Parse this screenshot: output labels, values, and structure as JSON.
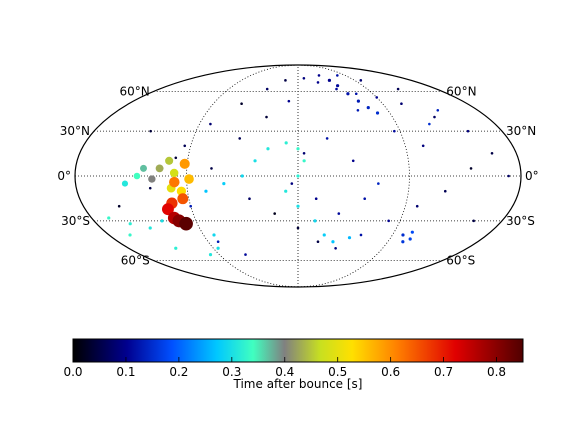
{
  "chart_data": {
    "type": "scatter",
    "projection": "mollweide",
    "title": "",
    "xlabel": "",
    "ylabel": "",
    "lat_tick_labels": [
      {
        "lat": 60,
        "label": "60°N"
      },
      {
        "lat": 30,
        "label": "30°N"
      },
      {
        "lat": 0,
        "label": "0°"
      },
      {
        "lat": -30,
        "label": "30°S"
      },
      {
        "lat": -60,
        "label": "60°S"
      }
    ],
    "grid": true,
    "colorbar": {
      "label": "Time after bounce [s]",
      "range": [
        0.0,
        0.85
      ],
      "ticks": [
        "0.0",
        "0.1",
        "0.2",
        "0.3",
        "0.4",
        "0.5",
        "0.6",
        "0.7",
        "0.8"
      ],
      "colormap": "jet-with-grey"
    },
    "series": [
      {
        "kind": "scattered-early-points",
        "points": [
          {
            "lon": -110,
            "lat": 5,
            "t": 0.02
          },
          {
            "lon": -100,
            "lat": 12,
            "t": 0.04
          },
          {
            "lon": -95,
            "lat": 20,
            "t": 0.06
          },
          {
            "lon": -120,
            "lat": -8,
            "t": 0.05
          },
          {
            "lon": -80,
            "lat": 35,
            "t": 0.08
          },
          {
            "lon": -60,
            "lat": 50,
            "t": 0.03
          },
          {
            "lon": -40,
            "lat": 62,
            "t": 0.07
          },
          {
            "lon": -20,
            "lat": 70,
            "t": 0.05
          },
          {
            "lon": 10,
            "lat": 72,
            "t": 0.09
          },
          {
            "lon": 30,
            "lat": 68,
            "t": 0.1
          },
          {
            "lon": 50,
            "lat": 62,
            "t": 0.11
          },
          {
            "lon": 70,
            "lat": 58,
            "t": 0.12
          },
          {
            "lon": 90,
            "lat": 55,
            "t": 0.1
          },
          {
            "lon": 110,
            "lat": 50,
            "t": 0.08
          },
          {
            "lon": 130,
            "lat": 40,
            "t": 0.07
          },
          {
            "lon": 150,
            "lat": 30,
            "t": 0.09
          },
          {
            "lon": 160,
            "lat": 15,
            "t": 0.05
          },
          {
            "lon": 140,
            "lat": 5,
            "t": 0.03
          },
          {
            "lon": 120,
            "lat": -10,
            "t": 0.06
          },
          {
            "lon": 100,
            "lat": -20,
            "t": 0.08
          },
          {
            "lon": 80,
            "lat": -30,
            "t": 0.1
          },
          {
            "lon": 60,
            "lat": -40,
            "t": 0.12
          },
          {
            "lon": 40,
            "lat": -50,
            "t": 0.09
          },
          {
            "lon": 20,
            "lat": -45,
            "t": 0.05
          },
          {
            "lon": 0,
            "lat": -35,
            "t": 0.04
          },
          {
            "lon": -20,
            "lat": -25,
            "t": 0.02
          },
          {
            "lon": -40,
            "lat": -15,
            "t": 0.07
          },
          {
            "lon": -60,
            "lat": -55,
            "t": 0.11
          },
          {
            "lon": -80,
            "lat": -45,
            "t": 0.13
          },
          {
            "lon": -100,
            "lat": -35,
            "t": 0.06
          },
          {
            "lon": 5,
            "lat": 15,
            "t": 0.08
          },
          {
            "lon": 25,
            "lat": 25,
            "t": 0.12
          },
          {
            "lon": 45,
            "lat": 10,
            "t": 0.1
          },
          {
            "lon": 65,
            "lat": -5,
            "t": 0.14
          },
          {
            "lon": 85,
            "lat": 30,
            "t": 0.11
          },
          {
            "lon": 105,
            "lat": 20,
            "t": 0.09
          },
          {
            "lon": -50,
            "lat": 25,
            "t": 0.06
          },
          {
            "lon": -30,
            "lat": 40,
            "t": 0.04
          },
          {
            "lon": -10,
            "lat": 52,
            "t": 0.1
          },
          {
            "lon": 60,
            "lat": 45,
            "t": 0.13
          },
          {
            "lon": 40,
            "lat": 75,
            "t": 0.1
          },
          {
            "lon": 75,
            "lat": 75,
            "t": 0.12
          },
          {
            "lon": 100,
            "lat": 70,
            "t": 0.08
          },
          {
            "lon": 130,
            "lat": 62,
            "t": 0.06
          },
          {
            "lon": -130,
            "lat": 30,
            "t": 0.04
          },
          {
            "lon": -150,
            "lat": -20,
            "t": 0.03
          },
          {
            "lon": 155,
            "lat": -30,
            "t": 0.05
          },
          {
            "lon": 170,
            "lat": 0,
            "t": 0.07
          },
          {
            "lon": -5,
            "lat": -5,
            "t": 0.09
          },
          {
            "lon": 15,
            "lat": -15,
            "t": 0.1
          },
          {
            "lon": 35,
            "lat": -25,
            "t": 0.11
          },
          {
            "lon": 55,
            "lat": -15,
            "t": 0.12
          },
          {
            "lon": -70,
            "lat": 5,
            "t": 0.05
          },
          {
            "lon": -90,
            "lat": -20,
            "t": 0.13
          },
          {
            "lon": 120,
            "lat": 35,
            "t": 0.15
          },
          {
            "lon": 140,
            "lat": 45,
            "t": 0.14
          }
        ]
      },
      {
        "kind": "trail",
        "points": [
          {
            "lon": 50,
            "lat": 70,
            "t": 0.1
          },
          {
            "lon": 55,
            "lat": 65,
            "t": 0.11
          },
          {
            "lon": 60,
            "lat": 58,
            "t": 0.12
          },
          {
            "lon": 66,
            "lat": 52,
            "t": 0.13
          },
          {
            "lon": 72,
            "lat": 47,
            "t": 0.14
          },
          {
            "lon": 78,
            "lat": 43,
            "t": 0.15
          }
        ]
      },
      {
        "kind": "trail",
        "points": [
          {
            "lon": -120,
            "lat": -30,
            "t": 0.3
          },
          {
            "lon": -135,
            "lat": -35,
            "t": 0.31
          },
          {
            "lon": -150,
            "lat": -32,
            "t": 0.32
          },
          {
            "lon": -165,
            "lat": -28,
            "t": 0.33
          },
          {
            "lon": -160,
            "lat": -40,
            "t": 0.33
          },
          {
            "lon": -130,
            "lat": -50,
            "t": 0.32
          },
          {
            "lon": -100,
            "lat": -55,
            "t": 0.31
          },
          {
            "lon": -85,
            "lat": -50,
            "t": 0.3
          },
          {
            "lon": -80,
            "lat": -40,
            "t": 0.29
          }
        ]
      },
      {
        "kind": "trail",
        "points": [
          {
            "lon": -75,
            "lat": -10,
            "t": 0.27
          },
          {
            "lon": -60,
            "lat": -5,
            "t": 0.28
          },
          {
            "lon": -45,
            "lat": 0,
            "t": 0.29
          },
          {
            "lon": -35,
            "lat": 10,
            "t": 0.3
          },
          {
            "lon": -25,
            "lat": 18,
            "t": 0.31
          },
          {
            "lon": -10,
            "lat": 22,
            "t": 0.32
          },
          {
            "lon": 0,
            "lat": 18,
            "t": 0.33
          },
          {
            "lon": 5,
            "lat": 10,
            "t": 0.33
          },
          {
            "lon": 0,
            "lat": 0,
            "t": 0.32
          },
          {
            "lon": -10,
            "lat": -10,
            "t": 0.31
          },
          {
            "lon": 0,
            "lat": -20,
            "t": 0.3
          },
          {
            "lon": 15,
            "lat": -30,
            "t": 0.29
          },
          {
            "lon": 25,
            "lat": -40,
            "t": 0.28
          },
          {
            "lon": 35,
            "lat": -45,
            "t": 0.27
          },
          {
            "lon": 50,
            "lat": -42,
            "t": 0.26
          }
        ]
      },
      {
        "kind": "trail",
        "points": [
          {
            "lon": 100,
            "lat": -40,
            "t": 0.15
          },
          {
            "lon": 105,
            "lat": -45,
            "t": 0.16
          },
          {
            "lon": 110,
            "lat": -43,
            "t": 0.17
          },
          {
            "lon": 107,
            "lat": -38,
            "t": 0.18
          }
        ]
      },
      {
        "kind": "main-track",
        "points": [
          {
            "lon": -140,
            "lat": -5,
            "t": 0.31
          },
          {
            "lon": -130,
            "lat": 0,
            "t": 0.34
          },
          {
            "lon": -125,
            "lat": 5,
            "t": 0.37
          },
          {
            "lon": -118,
            "lat": -2,
            "t": 0.4
          },
          {
            "lon": -112,
            "lat": 5,
            "t": 0.43
          },
          {
            "lon": -105,
            "lat": 10,
            "t": 0.45
          },
          {
            "lon": -100,
            "lat": 2,
            "t": 0.48
          },
          {
            "lon": -103,
            "lat": -8,
            "t": 0.5
          },
          {
            "lon": -95,
            "lat": -10,
            "t": 0.53
          },
          {
            "lon": -88,
            "lat": -2,
            "t": 0.56
          },
          {
            "lon": -92,
            "lat": 8,
            "t": 0.59
          },
          {
            "lon": -100,
            "lat": -4,
            "t": 0.62
          },
          {
            "lon": -95,
            "lat": -15,
            "t": 0.65
          },
          {
            "lon": -105,
            "lat": -18,
            "t": 0.68
          },
          {
            "lon": -110,
            "lat": -22,
            "t": 0.72
          },
          {
            "lon": -108,
            "lat": -28,
            "t": 0.76
          },
          {
            "lon": -105,
            "lat": -30,
            "t": 0.8
          },
          {
            "lon": -100,
            "lat": -32,
            "t": 0.84
          }
        ]
      }
    ]
  }
}
